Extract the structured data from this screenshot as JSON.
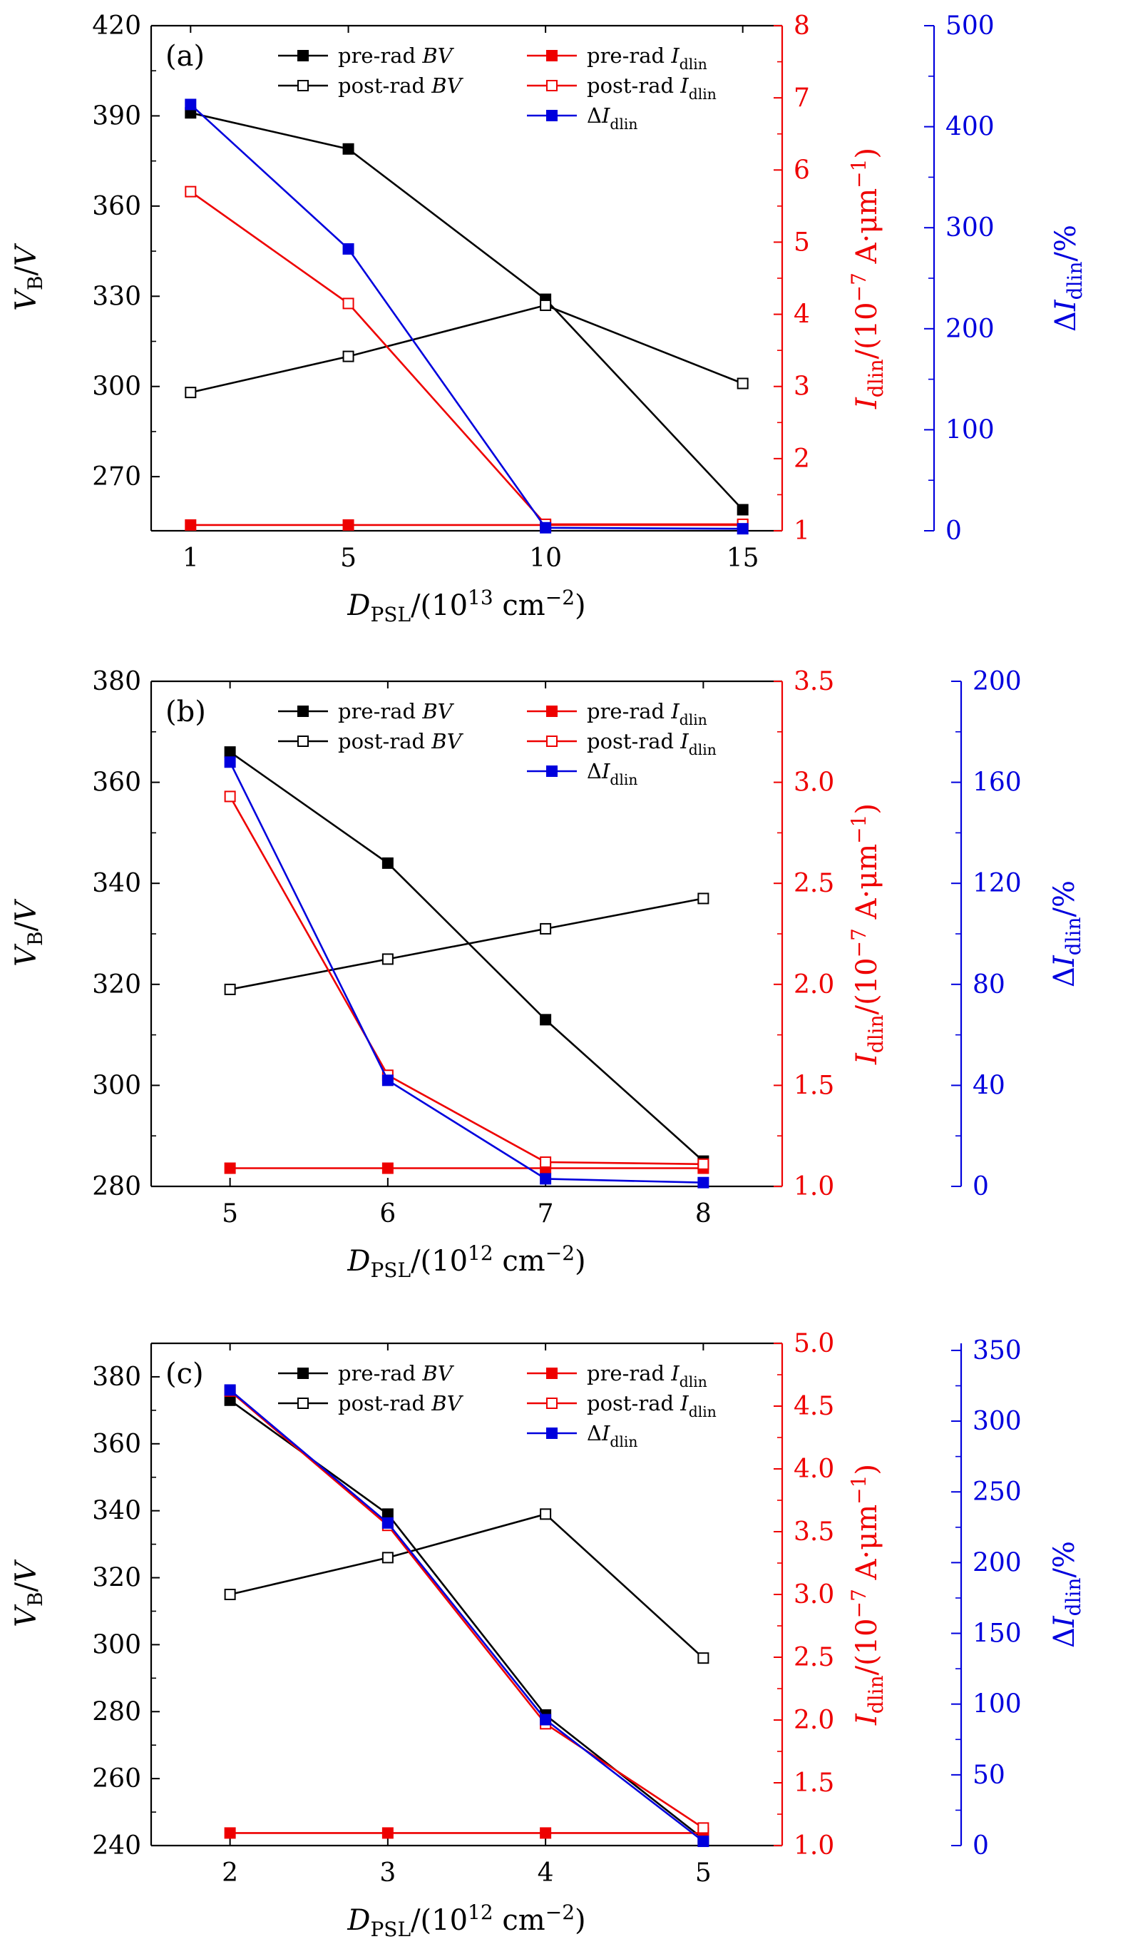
{
  "colors": {
    "black": "#000000",
    "red": "#ee0000",
    "blue": "#0000dd"
  },
  "legend": {
    "pre_bv": "pre-rad BV",
    "post_bv": "post-rad BV",
    "pre_i": "pre-rad I_dlin",
    "post_i": "post-rad I_dlin",
    "delta_i": "ΔI_dlin"
  },
  "chart_data": [
    {
      "type": "line",
      "panel": "(a)",
      "xlabel": "D_PSL/(10^13 cm^-2)",
      "ylabel_left": "V_B/V",
      "ylabel_right1": "I_dlin/(10^-7 A·μm^-1)",
      "ylabel_right2": "ΔI_dlin/%",
      "x": [
        1,
        5,
        10,
        15
      ],
      "xlim": [
        0,
        16
      ],
      "xticks": [
        1,
        5,
        10,
        15
      ],
      "ylim": [
        252,
        420
      ],
      "yticks": [
        270,
        300,
        330,
        360,
        390,
        420
      ],
      "y2lim": [
        1,
        8
      ],
      "y2ticks": [
        1,
        2,
        3,
        4,
        5,
        6,
        7,
        8
      ],
      "y3lim": [
        0,
        500
      ],
      "y3ticks": [
        0,
        100,
        200,
        300,
        400,
        500
      ],
      "series": [
        {
          "name": "pre-rad BV",
          "axis": "left",
          "color": "black",
          "filled": true,
          "values": [
            391,
            379,
            329,
            259
          ]
        },
        {
          "name": "post-rad BV",
          "axis": "left",
          "color": "black",
          "filled": false,
          "values": [
            298,
            310,
            327,
            301
          ]
        },
        {
          "name": "pre-rad I_dlin",
          "axis": "right1",
          "color": "red",
          "filled": true,
          "values": [
            1.08,
            1.08,
            1.08,
            1.08
          ]
        },
        {
          "name": "post-rad I_dlin",
          "axis": "right1",
          "color": "red",
          "filled": false,
          "values": [
            5.7,
            4.15,
            1.09,
            1.09
          ]
        },
        {
          "name": "ΔI_dlin",
          "axis": "right2",
          "color": "blue",
          "filled": true,
          "values": [
            422,
            279,
            3,
            2
          ]
        }
      ]
    },
    {
      "type": "line",
      "panel": "(b)",
      "xlabel": "D_PSL/(10^12 cm^-2)",
      "ylabel_left": "V_B/V",
      "ylabel_right1": "I_dlin/(10^-7 A·μm^-1)",
      "ylabel_right2": "ΔI_dlin/%",
      "x": [
        5,
        6,
        7,
        8
      ],
      "xlim": [
        4.5,
        8.5
      ],
      "xticks": [
        5,
        6,
        7,
        8
      ],
      "ylim": [
        280,
        380
      ],
      "yticks": [
        280,
        300,
        320,
        340,
        360,
        380
      ],
      "y2lim": [
        1.0,
        3.5
      ],
      "y2ticks": [
        1.0,
        1.5,
        2.0,
        2.5,
        3.0,
        3.5
      ],
      "y3lim": [
        0,
        200
      ],
      "y3ticks": [
        0,
        40,
        80,
        120,
        160,
        200
      ],
      "series": [
        {
          "name": "pre-rad BV",
          "axis": "left",
          "color": "black",
          "filled": true,
          "values": [
            366,
            344,
            313,
            285
          ]
        },
        {
          "name": "post-rad BV",
          "axis": "left",
          "color": "black",
          "filled": false,
          "values": [
            319,
            325,
            331,
            337
          ]
        },
        {
          "name": "pre-rad I_dlin",
          "axis": "right1",
          "color": "red",
          "filled": true,
          "values": [
            1.09,
            1.09,
            1.09,
            1.09
          ]
        },
        {
          "name": "post-rad I_dlin",
          "axis": "right1",
          "color": "red",
          "filled": false,
          "values": [
            2.93,
            1.55,
            1.12,
            1.11
          ]
        },
        {
          "name": "ΔI_dlin",
          "axis": "right2",
          "color": "blue",
          "filled": true,
          "values": [
            168,
            42,
            3,
            1.5
          ]
        }
      ]
    },
    {
      "type": "line",
      "panel": "(c)",
      "xlabel": "D_PSL/(10^12 cm^-2)",
      "ylabel_left": "V_B/V",
      "ylabel_right1": "I_dlin/(10^-7 A·μm^-1)",
      "ylabel_right2": "ΔI_dlin/%",
      "x": [
        2,
        3,
        4,
        5
      ],
      "xlim": [
        1.5,
        5.5
      ],
      "xticks": [
        2,
        3,
        4,
        5
      ],
      "ylim": [
        240,
        390
      ],
      "yticks": [
        240,
        260,
        280,
        300,
        320,
        340,
        360,
        380
      ],
      "y2lim": [
        1.0,
        5.0
      ],
      "y2ticks": [
        1.0,
        1.5,
        2.0,
        2.5,
        3.0,
        3.5,
        4.0,
        4.5,
        5.0
      ],
      "y3lim": [
        0,
        355
      ],
      "y3ticks": [
        0,
        50,
        100,
        150,
        200,
        250,
        300,
        350
      ],
      "series": [
        {
          "name": "pre-rad BV",
          "axis": "left",
          "color": "black",
          "filled": true,
          "values": [
            373,
            339,
            279,
            242
          ]
        },
        {
          "name": "post-rad BV",
          "axis": "left",
          "color": "black",
          "filled": false,
          "values": [
            315,
            326,
            339,
            296
          ]
        },
        {
          "name": "pre-rad I_dlin",
          "axis": "right1",
          "color": "red",
          "filled": true,
          "values": [
            1.1,
            1.1,
            1.1,
            1.1
          ]
        },
        {
          "name": "post-rad I_dlin",
          "axis": "right1",
          "color": "red",
          "filled": false,
          "values": [
            4.62,
            3.55,
            1.97,
            1.14
          ]
        },
        {
          "name": "ΔI_dlin",
          "axis": "right2",
          "color": "blue",
          "filled": true,
          "values": [
            322,
            228,
            89,
            3
          ]
        }
      ]
    }
  ]
}
